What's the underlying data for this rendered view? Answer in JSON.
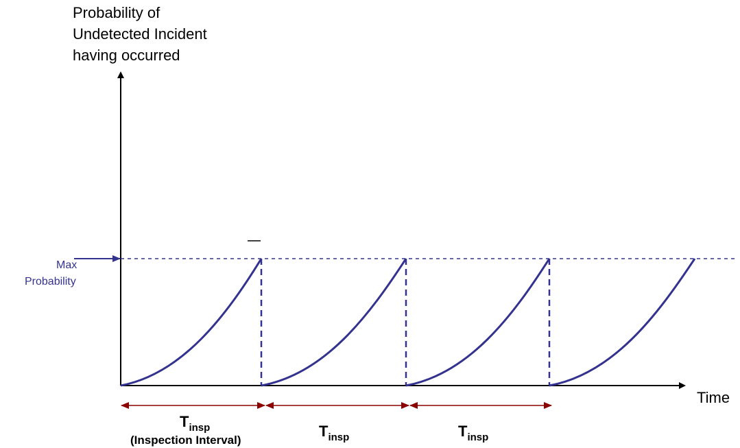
{
  "y_axis_label": [
    "Probability of",
    "Undetected Incident",
    "having occurred"
  ],
  "x_axis_label": "Time",
  "max_label": [
    "Max",
    "Probability"
  ],
  "intervals": [
    {
      "label_main": "T",
      "label_sub": "insp",
      "note": "(Inspection Interval)"
    },
    {
      "label_main": "T",
      "label_sub": "insp",
      "note": ""
    },
    {
      "label_main": "T",
      "label_sub": "insp",
      "note": ""
    }
  ],
  "colors": {
    "curve": "#33338f",
    "axes": "#000000",
    "interval_arrow": "#8b0000",
    "max_label": "#33338f"
  }
}
